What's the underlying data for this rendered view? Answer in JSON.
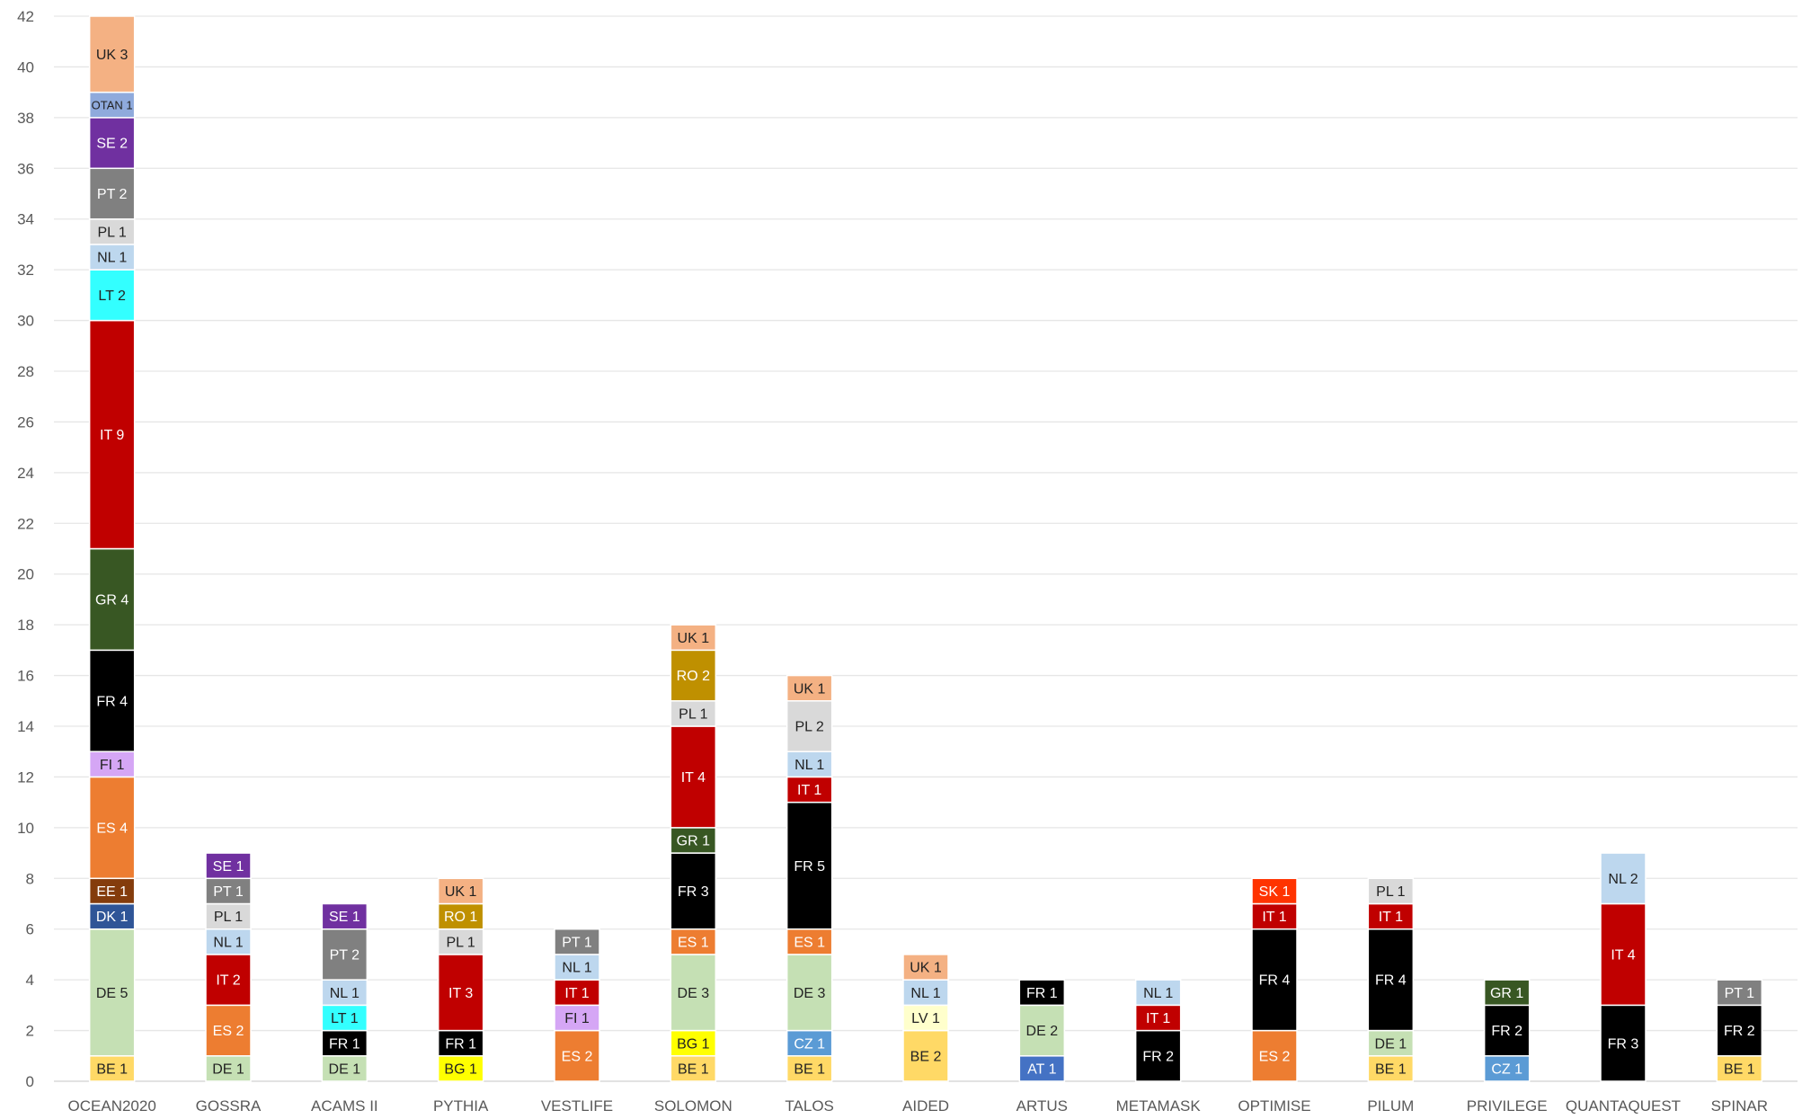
{
  "chart_data": {
    "type": "bar",
    "stacked": true,
    "title": "",
    "xlabel": "",
    "ylabel": "",
    "ylim": [
      0,
      42
    ],
    "y_ticks": [
      "0",
      "2",
      "4",
      "6",
      "8",
      "10",
      "12",
      "14",
      "16",
      "18",
      "20",
      "22",
      "24",
      "26",
      "28",
      "30",
      "32",
      "34",
      "36",
      "38",
      "40",
      "42"
    ],
    "grid": true,
    "categories": [
      "OCEAN2020",
      "GOSSRA",
      "ACAMS II",
      "PYTHIA",
      "VESTLIFE",
      "SOLOMON",
      "TALOS",
      "AIDED",
      "ARTUS",
      "METAMASK",
      "OPTIMISE",
      "PILUM",
      "PRIVILEGE",
      "QUANTAQUEST",
      "SPINAR"
    ],
    "colors": {
      "BE": "#ffd966",
      "DE": "#c5e0b4",
      "DK": "#2f5597",
      "EE": "#843c0c",
      "ES": "#ed7d31",
      "FI": "#d5a6f5",
      "FR": "#000000",
      "GR": "#385723",
      "IT": "#c00000",
      "LT": "#33ffff",
      "NL": "#bdd7ee",
      "PL": "#d9d9d9",
      "PT": "#808080",
      "SE": "#7030a0",
      "OTAN": "#8faadc",
      "UK": "#f4b183",
      "RO": "#bf9000",
      "BG": "#ffff00",
      "CZ": "#5b9bd5",
      "LV": "#ffffcc",
      "AT": "#4472c4",
      "SK": "#ff3300"
    },
    "stacks": [
      [
        {
          "country": "BE",
          "value": 1,
          "label": "BE 1"
        },
        {
          "country": "DE",
          "value": 5,
          "label": "DE 5"
        },
        {
          "country": "DK",
          "value": 1,
          "label": "DK 1"
        },
        {
          "country": "EE",
          "value": 1,
          "label": "EE 1"
        },
        {
          "country": "ES",
          "value": 4,
          "label": "ES 4"
        },
        {
          "country": "FI",
          "value": 1,
          "label": "FI 1"
        },
        {
          "country": "FR",
          "value": 4,
          "label": "FR 4"
        },
        {
          "country": "GR",
          "value": 4,
          "label": "GR 4"
        },
        {
          "country": "IT",
          "value": 9,
          "label": "IT 9"
        },
        {
          "country": "LT",
          "value": 2,
          "label": "LT 2"
        },
        {
          "country": "NL",
          "value": 1,
          "label": "NL 1"
        },
        {
          "country": "PL",
          "value": 1,
          "label": "PL 1"
        },
        {
          "country": "PT",
          "value": 2,
          "label": "PT 2"
        },
        {
          "country": "SE",
          "value": 2,
          "label": "SE 2"
        },
        {
          "country": "OTAN",
          "value": 1,
          "label": "OTAN 1"
        },
        {
          "country": "UK",
          "value": 3,
          "label": "UK 3"
        }
      ],
      [
        {
          "country": "DE",
          "value": 1,
          "label": "DE 1"
        },
        {
          "country": "ES",
          "value": 2,
          "label": "ES 2"
        },
        {
          "country": "IT",
          "value": 2,
          "label": "IT 2"
        },
        {
          "country": "NL",
          "value": 1,
          "label": "NL 1"
        },
        {
          "country": "PL",
          "value": 1,
          "label": "PL 1"
        },
        {
          "country": "PT",
          "value": 1,
          "label": "PT 1"
        },
        {
          "country": "SE",
          "value": 1,
          "label": "SE 1"
        }
      ],
      [
        {
          "country": "DE",
          "value": 1,
          "label": "DE 1"
        },
        {
          "country": "FR",
          "value": 1,
          "label": "FR 1"
        },
        {
          "country": "LT",
          "value": 1,
          "label": "LT 1"
        },
        {
          "country": "NL",
          "value": 1,
          "label": "NL 1"
        },
        {
          "country": "PT",
          "value": 2,
          "label": "PT 2"
        },
        {
          "country": "SE",
          "value": 1,
          "label": "SE 1"
        }
      ],
      [
        {
          "country": "BG",
          "value": 1,
          "label": "BG 1"
        },
        {
          "country": "FR",
          "value": 1,
          "label": "FR 1"
        },
        {
          "country": "IT",
          "value": 3,
          "label": "IT 3"
        },
        {
          "country": "PL",
          "value": 1,
          "label": "PL 1"
        },
        {
          "country": "RO",
          "value": 1,
          "label": "RO 1"
        },
        {
          "country": "UK",
          "value": 1,
          "label": "UK 1"
        }
      ],
      [
        {
          "country": "ES",
          "value": 2,
          "label": "ES 2"
        },
        {
          "country": "FI",
          "value": 1,
          "label": "FI 1"
        },
        {
          "country": "IT",
          "value": 1,
          "label": "IT 1"
        },
        {
          "country": "NL",
          "value": 1,
          "label": "NL 1"
        },
        {
          "country": "PT",
          "value": 1,
          "label": "PT 1"
        }
      ],
      [
        {
          "country": "BE",
          "value": 1,
          "label": "BE 1"
        },
        {
          "country": "BG",
          "value": 1,
          "label": "BG 1"
        },
        {
          "country": "DE",
          "value": 3,
          "label": "DE 3"
        },
        {
          "country": "ES",
          "value": 1,
          "label": "ES 1"
        },
        {
          "country": "FR",
          "value": 3,
          "label": "FR 3"
        },
        {
          "country": "GR",
          "value": 1,
          "label": "GR 1"
        },
        {
          "country": "IT",
          "value": 4,
          "label": "IT 4"
        },
        {
          "country": "PL",
          "value": 1,
          "label": "PL 1"
        },
        {
          "country": "RO",
          "value": 2,
          "label": "RO 2"
        },
        {
          "country": "UK",
          "value": 1,
          "label": "UK 1"
        }
      ],
      [
        {
          "country": "BE",
          "value": 1,
          "label": "BE 1"
        },
        {
          "country": "CZ",
          "value": 1,
          "label": "CZ 1"
        },
        {
          "country": "DE",
          "value": 3,
          "label": "DE 3"
        },
        {
          "country": "ES",
          "value": 1,
          "label": "ES 1"
        },
        {
          "country": "FR",
          "value": 5,
          "label": "FR 5"
        },
        {
          "country": "IT",
          "value": 1,
          "label": "IT 1"
        },
        {
          "country": "NL",
          "value": 1,
          "label": "NL 1"
        },
        {
          "country": "PL",
          "value": 2,
          "label": "PL 2"
        },
        {
          "country": "UK",
          "value": 1,
          "label": "UK 1"
        }
      ],
      [
        {
          "country": "BE",
          "value": 2,
          "label": "BE 2"
        },
        {
          "country": "LV",
          "value": 1,
          "label": "LV 1"
        },
        {
          "country": "NL",
          "value": 1,
          "label": "NL 1"
        },
        {
          "country": "UK",
          "value": 1,
          "label": "UK 1"
        }
      ],
      [
        {
          "country": "AT",
          "value": 1,
          "label": "AT 1"
        },
        {
          "country": "DE",
          "value": 2,
          "label": "DE 2"
        },
        {
          "country": "FR",
          "value": 1,
          "label": "FR 1"
        }
      ],
      [
        {
          "country": "FR",
          "value": 2,
          "label": "FR 2"
        },
        {
          "country": "IT",
          "value": 1,
          "label": "IT 1"
        },
        {
          "country": "NL",
          "value": 1,
          "label": "NL 1"
        }
      ],
      [
        {
          "country": "ES",
          "value": 2,
          "label": "ES 2"
        },
        {
          "country": "FR",
          "value": 4,
          "label": "FR 4"
        },
        {
          "country": "IT",
          "value": 1,
          "label": "IT 1"
        },
        {
          "country": "SK",
          "value": 1,
          "label": "SK 1"
        }
      ],
      [
        {
          "country": "BE",
          "value": 1,
          "label": "BE 1"
        },
        {
          "country": "DE",
          "value": 1,
          "label": "DE 1"
        },
        {
          "country": "FR",
          "value": 4,
          "label": "FR 4"
        },
        {
          "country": "IT",
          "value": 1,
          "label": "IT 1"
        },
        {
          "country": "PL",
          "value": 1,
          "label": "PL 1"
        }
      ],
      [
        {
          "country": "CZ",
          "value": 1,
          "label": "CZ 1"
        },
        {
          "country": "FR",
          "value": 2,
          "label": "FR 2"
        },
        {
          "country": "GR",
          "value": 1,
          "label": "GR 1"
        }
      ],
      [
        {
          "country": "FR",
          "value": 3,
          "label": "FR 3"
        },
        {
          "country": "IT",
          "value": 4,
          "label": "IT 4"
        },
        {
          "country": "NL",
          "value": 2,
          "label": "NL 2"
        }
      ],
      [
        {
          "country": "BE",
          "value": 1,
          "label": "BE 1"
        },
        {
          "country": "FR",
          "value": 2,
          "label": "FR 2"
        },
        {
          "country": "PT",
          "value": 1,
          "label": "PT 1"
        }
      ]
    ]
  }
}
